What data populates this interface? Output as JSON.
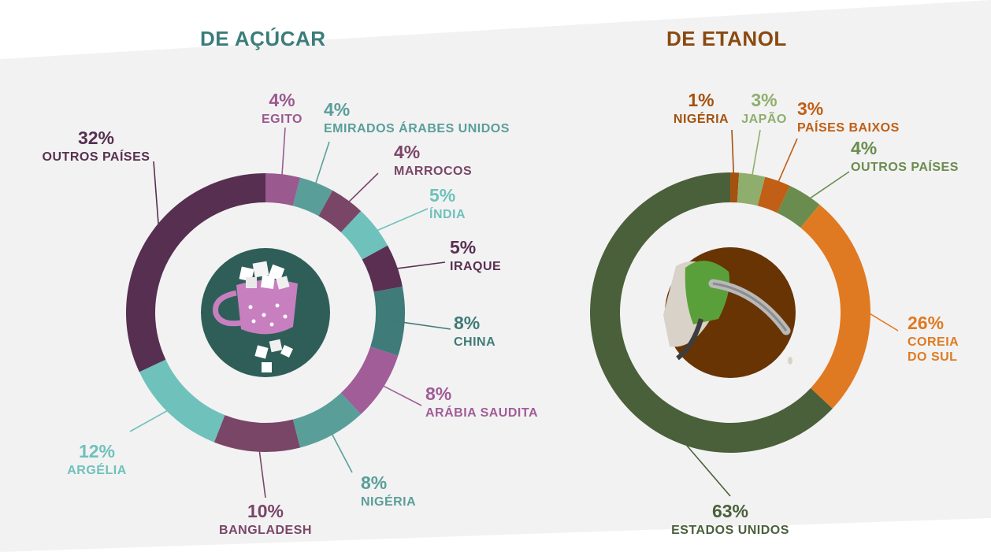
{
  "chart_data": [
    {
      "type": "pie",
      "title": "DE AÇÚCAR",
      "title_color": "#3b7d7a",
      "slices": [
        {
          "pct_label": "4%",
          "label": "EGITO",
          "value": 4,
          "color": "#9a5a8f"
        },
        {
          "pct_label": "4%",
          "label": "EMIRADOS ÁRABES UNIDOS",
          "value": 4,
          "color": "#5a9e9a"
        },
        {
          "pct_label": "4%",
          "label": "MARROCOS",
          "value": 4,
          "color": "#7a4668"
        },
        {
          "pct_label": "5%",
          "label": "ÍNDIA",
          "value": 5,
          "color": "#6fc1bc"
        },
        {
          "pct_label": "5%",
          "label": "IRAQUE",
          "value": 5,
          "color": "#5a2f52"
        },
        {
          "pct_label": "8%",
          "label": "CHINA",
          "value": 8,
          "color": "#3f7b78"
        },
        {
          "pct_label": "8%",
          "label": "ARÁBIA SAUDITA",
          "value": 8,
          "color": "#a05d97"
        },
        {
          "pct_label": "8%",
          "label": "NIGÉRIA",
          "value": 8,
          "color": "#5a9e9a"
        },
        {
          "pct_label": "10%",
          "label": "BANGLADESH",
          "value": 10,
          "color": "#7a4668"
        },
        {
          "pct_label": "12%",
          "label": "ARGÉLIA",
          "value": 12,
          "color": "#6fc1bc"
        },
        {
          "pct_label": "32%",
          "label": "OUTROS PAÍSES",
          "value": 32,
          "color": "#572f51"
        }
      ]
    },
    {
      "type": "pie",
      "title": "DE ETANOL",
      "title_color": "#8a4a10",
      "slices": [
        {
          "pct_label": "1%",
          "label": "NIGÉRIA",
          "value": 1,
          "color": "#a3520f"
        },
        {
          "pct_label": "3%",
          "label": "JAPÃO",
          "value": 3,
          "color": "#8fae6d"
        },
        {
          "pct_label": "3%",
          "label": "PAÍSES BAIXOS",
          "value": 3,
          "color": "#c05f15"
        },
        {
          "pct_label": "4%",
          "label": "OUTROS PAÍSES",
          "value": 4,
          "color": "#6a8c4e"
        },
        {
          "pct_label": "26%",
          "label": "COREIA DO SUL",
          "value": 26,
          "color": "#e07a22"
        },
        {
          "pct_label": "63%",
          "label": "ESTADOS UNIDOS",
          "value": 63,
          "color": "#4a603a"
        }
      ]
    }
  ],
  "colors": {
    "background_panel": "#f2f2f2",
    "sugar_center": "#2f5e58",
    "ethanol_center": "#683404",
    "sugar_label_colors": [
      "#9a5a8f",
      "#5a9e9a",
      "#7a4668",
      "#6fc1bc",
      "#5a2f52",
      "#3f7b78",
      "#a05d97",
      "#5a9e9a",
      "#7a4668",
      "#6fc1bc",
      "#572f51"
    ],
    "ethanol_label_colors": [
      "#a3520f",
      "#8fae6d",
      "#c05f15",
      "#6a8c4e",
      "#e07a22",
      "#4a603a"
    ]
  },
  "icons": {
    "sugar_center": "sugar-cup-icon",
    "ethanol_center": "fuel-nozzle-icon"
  }
}
